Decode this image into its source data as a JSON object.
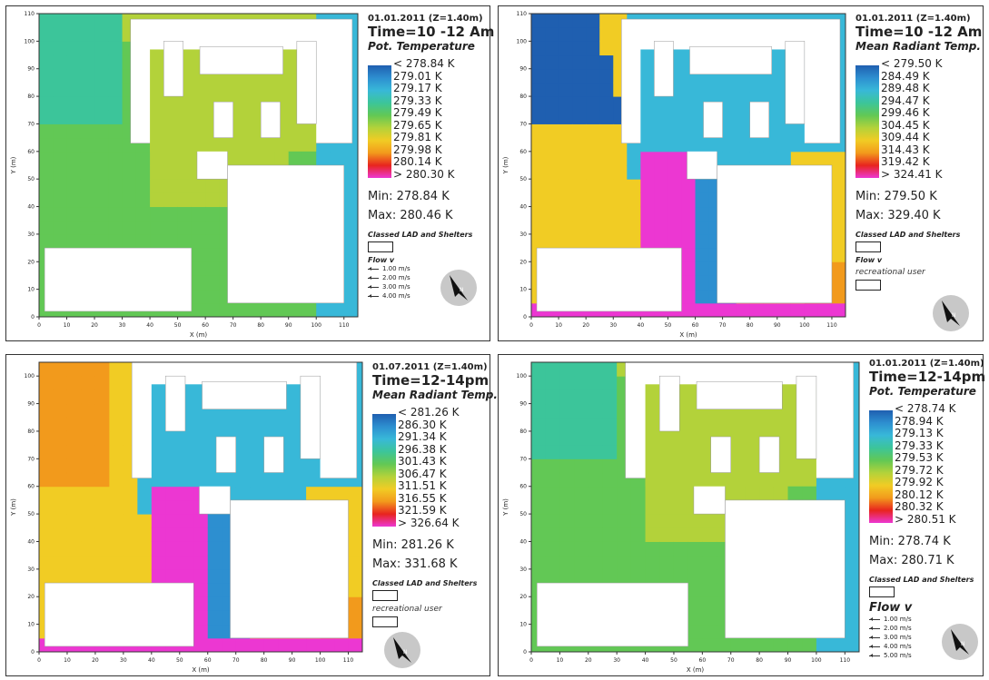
{
  "colors": {
    "pot_scale": [
      "#1f5fb0",
      "#2d8fd0",
      "#38b8d8",
      "#3cc59a",
      "#62c855",
      "#b3d23a",
      "#f1cc24",
      "#f29a1c",
      "#e8241e",
      "#ec37d2"
    ],
    "mrt_scale": [
      "#1f5fb0",
      "#2d8fd0",
      "#38b8d8",
      "#3cc59a",
      "#62c855",
      "#b3d23a",
      "#f1cc24",
      "#f29a1c",
      "#e8241e",
      "#ec37d2"
    ]
  },
  "panels": [
    {
      "date": "01.01.2011 (Z=1.40m)",
      "time": "Time=10 -12 Am",
      "variable": "Pot. Temperature",
      "scale_labels": [
        "< 278.84 K",
        "279.01 K",
        "279.17 K",
        "279.33 K",
        "279.49 K",
        "279.65 K",
        "279.81 K",
        "279.98 K",
        "280.14 K",
        "> 280.30 K"
      ],
      "min": "Min: 278.84 K",
      "max": "Max: 280.46 K",
      "classed": "Classed LAD and Shelters",
      "flow_title": "Flow v",
      "flow_refs": [
        "1.00 m/s",
        "2.00 m/s",
        "3.00 m/s",
        "4.00 m/s"
      ],
      "recreational": ""
    },
    {
      "date": "01.01.2011 (Z=1.40m)",
      "time": "Time=10 -12 Am",
      "variable": "Mean Radiant Temp.",
      "scale_labels": [
        "< 279.50 K",
        "284.49 K",
        "289.48 K",
        "294.47 K",
        "299.46 K",
        "304.45 K",
        "309.44 K",
        "314.43 K",
        "319.42 K",
        "> 324.41 K"
      ],
      "min": "Min: 279.50 K",
      "max": "Max: 329.40 K",
      "classed": "Classed LAD and Shelters",
      "flow_title": "Flow v",
      "flow_refs": [],
      "recreational": "recreational user"
    },
    {
      "date": "01.07.2011 (Z=1.40m)",
      "time": "Time=12-14pm",
      "variable": "Mean Radiant Temp.",
      "scale_labels": [
        "< 281.26 K",
        "286.30 K",
        "291.34 K",
        "296.38 K",
        "301.43 K",
        "306.47 K",
        "311.51 K",
        "316.55 K",
        "321.59 K",
        "> 326.64 K"
      ],
      "min": "Min: 281.26 K",
      "max": "Max: 331.68 K",
      "classed": "Classed LAD and Shelters",
      "flow_title": "",
      "flow_refs": [],
      "recreational": "recreational user"
    },
    {
      "date": "01.01.2011 (Z=1.40m)",
      "time": "Time=12-14pm",
      "variable": "Pot. Temperature",
      "scale_labels": [
        "< 278.74 K",
        "278.94 K",
        "279.13 K",
        "279.33 K",
        "279.53 K",
        "279.72 K",
        "279.92 K",
        "280.12 K",
        "280.32 K",
        "> 280.51 K"
      ],
      "min": "Min: 278.74 K",
      "max": "Max: 280.71 K",
      "classed": "Classed LAD and Shelters",
      "flow_title": "Flow v",
      "flow_refs": [
        "1.00 m/s",
        "2.00 m/s",
        "3.00 m/s",
        "4.00 m/s",
        "5.00 m/s"
      ],
      "recreational": ""
    }
  ],
  "chart_data": [
    {
      "type": "heatmap",
      "title": "Pot. Temperature",
      "xlabel": "X (m)",
      "ylabel": "Y (m)",
      "xlim": [
        0,
        115
      ],
      "ylim": [
        0,
        110
      ],
      "xticks": [
        "0",
        "10",
        "20",
        "30",
        "40",
        "50",
        "60",
        "70",
        "80",
        "90",
        "100",
        "110"
      ],
      "yticks": [
        "0",
        "10",
        "20",
        "30",
        "40",
        "50",
        "60",
        "70",
        "80",
        "90",
        "100",
        "110"
      ],
      "field": "pot"
    },
    {
      "type": "heatmap",
      "title": "Mean Radiant Temp.",
      "xlabel": "X (m)",
      "ylabel": "Y (m)",
      "xlim": [
        0,
        115
      ],
      "ylim": [
        0,
        110
      ],
      "xticks": [
        "0",
        "10",
        "20",
        "30",
        "40",
        "50",
        "60",
        "70",
        "80",
        "90",
        "100",
        "110"
      ],
      "yticks": [
        "0",
        "10",
        "20",
        "30",
        "40",
        "50",
        "60",
        "70",
        "80",
        "90",
        "100",
        "110"
      ],
      "field": "mrt"
    },
    {
      "type": "heatmap",
      "title": "Mean Radiant Temp.",
      "xlabel": "X (m)",
      "ylabel": "Y (m)",
      "xlim": [
        0,
        115
      ],
      "ylim": [
        0,
        105
      ],
      "xticks": [
        "0",
        "10",
        "20",
        "30",
        "40",
        "50",
        "60",
        "70",
        "80",
        "90",
        "100",
        "110"
      ],
      "yticks": [
        "0",
        "10",
        "20",
        "30",
        "40",
        "50",
        "60",
        "70",
        "80",
        "90",
        "100"
      ],
      "field": "mrt"
    },
    {
      "type": "heatmap",
      "title": "Pot. Temperature",
      "xlabel": "X (m)",
      "ylabel": "Y (m)",
      "xlim": [
        0,
        115
      ],
      "ylim": [
        0,
        105
      ],
      "xticks": [
        "0",
        "10",
        "20",
        "30",
        "40",
        "50",
        "60",
        "70",
        "80",
        "90",
        "100",
        "110"
      ],
      "yticks": [
        "0",
        "10",
        "20",
        "30",
        "40",
        "50",
        "60",
        "70",
        "80",
        "90",
        "100"
      ],
      "field": "pot"
    }
  ]
}
